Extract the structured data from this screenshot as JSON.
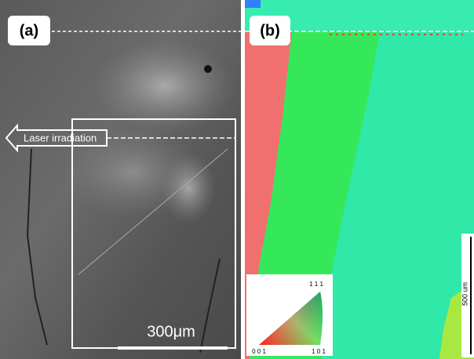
{
  "panel_a": {
    "label": "(a)",
    "arrow_label": "Laser irradiation",
    "scale_bar": "300μm"
  },
  "panel_b": {
    "label": "(b)",
    "scale_bar": "500 um",
    "legend": {
      "top": "1 1 1",
      "left": "0 0 1",
      "right": "1 0 1"
    }
  }
}
